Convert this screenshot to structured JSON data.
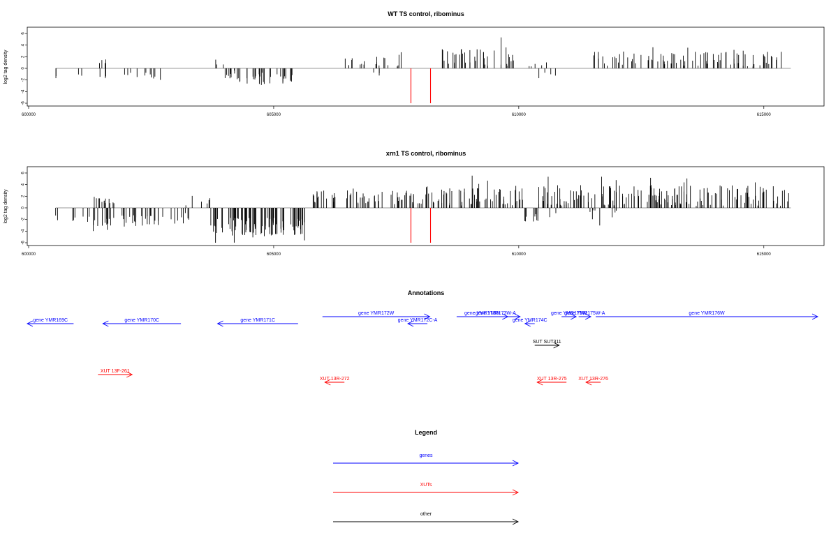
{
  "colors": {
    "gene": "#0000ff",
    "xut": "#ff0000",
    "other": "#000000",
    "guide": "#ff0000",
    "axis": "#000000"
  },
  "chart_data": [
    {
      "type": "bar",
      "title": "WT TS control, ribominus",
      "ylabel": "log2 tag density",
      "xlim": [
        600000,
        616200
      ],
      "ylim": [
        -6,
        7
      ],
      "xticks": [
        600000,
        605000,
        610000,
        615000
      ],
      "xtick_labels": [
        "600000",
        "605000",
        "610000",
        "615000"
      ],
      "yticks": [
        -6,
        -4,
        -2,
        0,
        2,
        4,
        6
      ],
      "ytick_labels": [
        "-6",
        "-4",
        "-2",
        "0",
        "2",
        "4",
        "6"
      ],
      "guide_lines_x": [
        607800,
        608200
      ],
      "guide_lines_y": [
        -6,
        0
      ],
      "baseline": [
        600550,
        615550
      ],
      "segments": [
        {
          "start": 600550,
          "end": 600560,
          "base": -1.5,
          "amp": 0.8,
          "density": 0.2
        },
        {
          "start": 601000,
          "end": 601100,
          "base": -1.6,
          "amp": 1.2,
          "density": 0.35
        },
        {
          "start": 601400,
          "end": 601600,
          "base": 1.2,
          "amp": 0.8,
          "density": 0.4
        },
        {
          "start": 601400,
          "end": 601600,
          "base": -1.3,
          "amp": 1.0,
          "density": 0.3
        },
        {
          "start": 601800,
          "end": 602500,
          "base": -1.0,
          "amp": 1.0,
          "density": 0.2
        },
        {
          "start": 602500,
          "end": 602700,
          "base": -1.3,
          "amp": 1.0,
          "density": 0.35
        },
        {
          "start": 603800,
          "end": 604300,
          "base": -1.2,
          "amp": 1.4,
          "density": 0.4
        },
        {
          "start": 603800,
          "end": 604000,
          "base": 0.6,
          "amp": 0.8,
          "density": 0.25
        },
        {
          "start": 604300,
          "end": 605600,
          "base": -1.8,
          "amp": 1.8,
          "density": 0.45
        },
        {
          "start": 606100,
          "end": 607700,
          "base": 0.9,
          "amp": 1.6,
          "density": 0.25
        },
        {
          "start": 607000,
          "end": 607200,
          "base": -1.0,
          "amp": 0.7,
          "density": 0.3
        },
        {
          "start": 608400,
          "end": 609300,
          "base": 2.0,
          "amp": 2.2,
          "density": 0.6
        },
        {
          "start": 609300,
          "end": 610000,
          "base": 1.7,
          "amp": 3.3,
          "density": 0.4
        },
        {
          "start": 610200,
          "end": 610900,
          "base": 0.6,
          "amp": 0.8,
          "density": 0.15
        },
        {
          "start": 610200,
          "end": 610900,
          "base": -1.0,
          "amp": 1.4,
          "density": 0.1
        },
        {
          "start": 611500,
          "end": 615400,
          "base": 1.5,
          "amp": 2.4,
          "density": 0.45
        }
      ]
    },
    {
      "type": "bar",
      "title": "xrn1 TS control, ribominus",
      "ylabel": "log2 tag density",
      "xlim": [
        600000,
        616200
      ],
      "ylim": [
        -6,
        7
      ],
      "xticks": [
        600000,
        605000,
        610000,
        615000
      ],
      "xtick_labels": [
        "600000",
        "605000",
        "610000",
        "615000"
      ],
      "yticks": [
        -6,
        -4,
        -2,
        0,
        2,
        4,
        6
      ],
      "ytick_labels": [
        "-6",
        "-4",
        "-2",
        "0",
        "2",
        "4",
        "6"
      ],
      "guide_lines_x": [
        607800,
        608200
      ],
      "guide_lines_y": [
        -6,
        0
      ],
      "baseline": [
        600550,
        615550
      ],
      "segments": [
        {
          "start": 600550,
          "end": 600600,
          "base": -2.0,
          "amp": 1.2,
          "density": 0.3
        },
        {
          "start": 600900,
          "end": 601300,
          "base": -2.2,
          "amp": 1.5,
          "density": 0.3
        },
        {
          "start": 601300,
          "end": 601800,
          "base": 1.5,
          "amp": 1.2,
          "density": 0.5
        },
        {
          "start": 601300,
          "end": 602800,
          "base": -2.2,
          "amp": 1.6,
          "density": 0.5
        },
        {
          "start": 602800,
          "end": 603400,
          "base": -1.5,
          "amp": 1.2,
          "density": 0.25
        },
        {
          "start": 603200,
          "end": 603700,
          "base": 1.2,
          "amp": 1.4,
          "density": 0.25
        },
        {
          "start": 603700,
          "end": 605700,
          "base": -3.2,
          "amp": 2.6,
          "density": 0.95
        },
        {
          "start": 605800,
          "end": 608400,
          "base": 1.8,
          "amp": 2.0,
          "density": 0.55
        },
        {
          "start": 608400,
          "end": 610100,
          "base": 2.0,
          "amp": 3.0,
          "density": 0.65
        },
        {
          "start": 610100,
          "end": 610400,
          "base": -1.8,
          "amp": 1.2,
          "density": 0.5
        },
        {
          "start": 610400,
          "end": 615550,
          "base": 2.0,
          "amp": 3.2,
          "density": 0.65
        },
        {
          "start": 610400,
          "end": 612000,
          "base": -1.0,
          "amp": 1.8,
          "density": 0.12
        }
      ]
    }
  ],
  "annotations": {
    "title": "Annotations",
    "xlim": [
      600000,
      616200
    ],
    "features": [
      {
        "label": "gene YMR169C",
        "start": 600000,
        "end": 600950,
        "strand": "-",
        "kind": "gene",
        "row": 2
      },
      {
        "label": "gene YMR170C",
        "start": 601550,
        "end": 603150,
        "strand": "-",
        "kind": "gene",
        "row": 2
      },
      {
        "label": "gene YMR171C",
        "start": 603900,
        "end": 605550,
        "strand": "-",
        "kind": "gene",
        "row": 2
      },
      {
        "label": "gene YMR172W",
        "start": 606050,
        "end": 608250,
        "strand": "+",
        "kind": "gene",
        "row": 1
      },
      {
        "label": "gene YMR172C-A",
        "start": 607800,
        "end": 608200,
        "strand": "-",
        "kind": "gene",
        "row": 2
      },
      {
        "label": "gene YMR173W",
        "start": 608800,
        "end": 609850,
        "strand": "+",
        "kind": "gene",
        "row": 1
      },
      {
        "label": "gene YMR173W-A",
        "start": 609100,
        "end": 610100,
        "strand": "+",
        "kind": "gene",
        "row": 1
      },
      {
        "label": "gene YMR174C",
        "start": 610200,
        "end": 610400,
        "strand": "-",
        "kind": "gene",
        "row": 2
      },
      {
        "label": "gene YMR175W",
        "start": 610950,
        "end": 611250,
        "strand": "+",
        "kind": "gene",
        "row": 1
      },
      {
        "label": "gene YMR175W-A",
        "start": 611300,
        "end": 611550,
        "strand": "+",
        "kind": "gene",
        "row": 1
      },
      {
        "label": "gene YMR176W",
        "start": 611650,
        "end": 616200,
        "strand": "+",
        "kind": "gene",
        "row": 1
      },
      {
        "label": "SUT SUT311",
        "start": 610400,
        "end": 610900,
        "strand": "+",
        "kind": "other",
        "row": 3
      },
      {
        "label": "XUT 13F-261",
        "start": 601450,
        "end": 602150,
        "strand": "+",
        "kind": "xut",
        "row": 4
      },
      {
        "label": "XUT 13R-272",
        "start": 606100,
        "end": 606500,
        "strand": "-",
        "kind": "xut",
        "row": 5
      },
      {
        "label": "XUT 13R-275",
        "start": 610450,
        "end": 611050,
        "strand": "-",
        "kind": "xut",
        "row": 5
      },
      {
        "label": "XUT 13R-276",
        "start": 611450,
        "end": 611750,
        "strand": "-",
        "kind": "xut",
        "row": 5
      }
    ]
  },
  "legend": {
    "title": "Legend",
    "items": [
      {
        "label": "genes",
        "kind": "gene"
      },
      {
        "label": "XUTs",
        "kind": "xut"
      },
      {
        "label": "other",
        "kind": "other"
      }
    ]
  }
}
